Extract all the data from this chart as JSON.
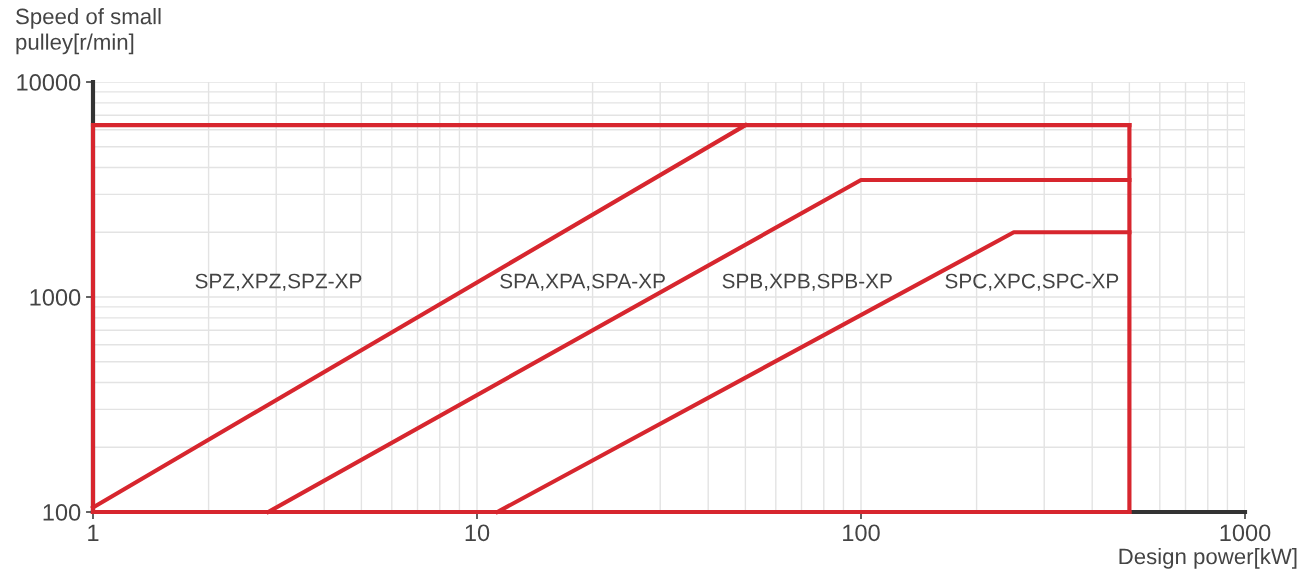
{
  "chart_data": {
    "type": "line",
    "xlabel": "Design power[kW]",
    "ylabel": "Speed of small\npulley[r/min]",
    "log": "xy",
    "xlim": [
      1,
      1000
    ],
    "ylim": [
      100,
      10000
    ],
    "xticks": [
      1,
      10,
      100,
      1000
    ],
    "yticks": [
      100,
      1000,
      10000
    ],
    "grid": true,
    "marker": "none",
    "line_style": "solid",
    "series": [
      {
        "color": "#d7262e",
        "x": [
          1,
          500
        ],
        "values": [
          6300,
          6300
        ]
      },
      {
        "color": "#d7262e",
        "x": [
          1,
          500
        ],
        "values": [
          100,
          100
        ]
      },
      {
        "color": "#d7262e",
        "x": [
          1,
          1
        ],
        "values": [
          100,
          6300
        ]
      },
      {
        "color": "#d7262e",
        "x": [
          500,
          500
        ],
        "values": [
          100,
          6300
        ]
      },
      {
        "color": "#d7262e",
        "x": [
          1,
          50
        ],
        "values": [
          105,
          6300
        ]
      },
      {
        "color": "#d7262e",
        "x": [
          2.86,
          100,
          500
        ],
        "values": [
          100,
          3500,
          3500
        ]
      },
      {
        "color": "#d7262e",
        "x": [
          11.3,
          250,
          500
        ],
        "values": [
          100,
          2000,
          2000
        ]
      }
    ],
    "annotations": [
      "SPZ,XPZ,SPZ-XP",
      "SPA,XPA,SPA-XP",
      "SPB,XPB,SPB-XP",
      "SPC,XPC,SPC-XP"
    ]
  }
}
